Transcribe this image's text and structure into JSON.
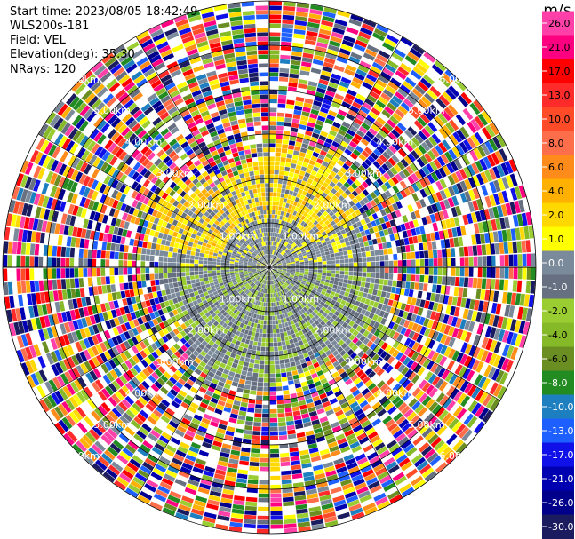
{
  "header": {
    "start_time": "Start time: 2023/08/05 18:42:49",
    "instrument": "WLS200s-181",
    "field": "Field: VEL",
    "elevation": "Elevation(deg): 35.30",
    "nrays": "NRays: 120"
  },
  "chart_data": {
    "type": "heatmap",
    "projection": "polar",
    "field": "VEL",
    "units": "m/s",
    "nrays": 120,
    "elevation_deg": 35.3,
    "max_range_km": 6.0,
    "range_rings_km": [
      1.0,
      2.0,
      3.0,
      4.0,
      5.0,
      6.0
    ],
    "range_ring_labels": [
      "1.00km",
      "2.00km",
      "3.00km",
      "4.00km",
      "5.00km",
      "6.00km"
    ],
    "spokes": "every 30 deg",
    "colorbar": {
      "unit_label": "m/s",
      "ticks": [
        "26.0",
        "21.0",
        "17.0",
        "13.0",
        "10.0",
        "8.0",
        "6.0",
        "4.0",
        "2.0",
        "1.0",
        "0.0",
        "-1.0",
        "-2.0",
        "-4.0",
        "-6.0",
        "-8.0",
        "-10.0",
        "-13.0",
        "-17.0",
        "-21.0",
        "-26.0",
        "-30.0"
      ],
      "colors": [
        "#ff40a8",
        "#ff0080",
        "#ff0000",
        "#ff2a2a",
        "#ff4b28",
        "#ff6e4a",
        "#ff8c1a",
        "#ffb000",
        "#ffd800",
        "#ffff00",
        "#7b8a9a",
        "#667080",
        "#9acd32",
        "#86b928",
        "#6b8e23",
        "#228b22",
        "#1e7fc0",
        "#1e60ff",
        "#1010e8",
        "#0000b0",
        "#00008b",
        "#1b1b60"
      ]
    },
    "regions": [
      {
        "range_km": [
          0.0,
          2.0
        ],
        "bearing_deg": [
          -90,
          90
        ],
        "dominant_velocity_ms": [
          0.0,
          1.0
        ]
      },
      {
        "range_km": [
          0.0,
          2.0
        ],
        "bearing_deg": [
          90,
          270
        ],
        "dominant_velocity_ms": [
          -2.0,
          -1.0
        ]
      },
      {
        "range_km": [
          1.0,
          2.5
        ],
        "bearing_deg": [
          -80,
          60
        ],
        "dominant_velocity_ms": [
          1.0,
          4.0
        ]
      },
      {
        "range_km": [
          2.5,
          6.0
        ],
        "bearing_deg": [
          0,
          360
        ],
        "dominant_velocity_ms": "noise"
      }
    ]
  }
}
